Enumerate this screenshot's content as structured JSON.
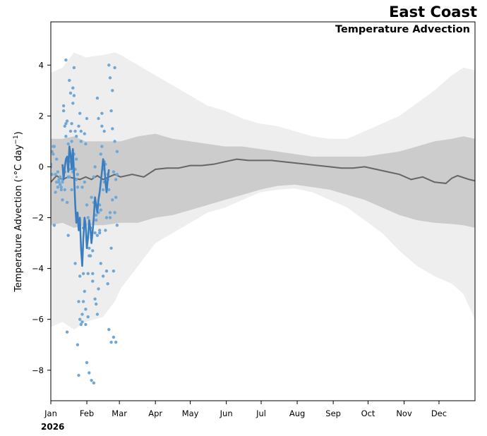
{
  "chart_data": {
    "type": "line",
    "title": "East Coast",
    "subtitle": "Temperature Advection",
    "ylabel_main": "Temperature Advection (",
    "ylabel_unit": "°C day",
    "ylabel_exp": "−1",
    "ylabel_close": ")",
    "year_label": "2026",
    "xlim": [
      0,
      365
    ],
    "ylim": [
      -9.2,
      5.7
    ],
    "yticks": [
      4,
      2,
      0,
      -2,
      -4,
      -6,
      -8
    ],
    "ytick_labels": [
      "4",
      "2",
      "0",
      "−2",
      "−4",
      "−6",
      "−8"
    ],
    "xticks": [
      {
        "day": 0,
        "label": "Jan"
      },
      {
        "day": 31,
        "label": "Feb"
      },
      {
        "day": 59,
        "label": "Mar"
      },
      {
        "day": 90,
        "label": "Apr"
      },
      {
        "day": 120,
        "label": "May"
      },
      {
        "day": 151,
        "label": "Jun"
      },
      {
        "day": 181,
        "label": "Jul"
      },
      {
        "day": 212,
        "label": "Aug"
      },
      {
        "day": 243,
        "label": "Sep"
      },
      {
        "day": 273,
        "label": "Oct"
      },
      {
        "day": 304,
        "label": "Nov"
      },
      {
        "day": 334,
        "label": "Dec"
      }
    ],
    "colors": {
      "outer_band": "#eeeeee",
      "inner_band": "#cccccc",
      "climatology": "#666666",
      "observed": "#3a7ebf",
      "scatter": "#6fa8d6"
    },
    "outer_band": {
      "x": [
        0,
        10,
        20,
        30,
        45,
        55,
        60,
        75,
        90,
        105,
        120,
        135,
        150,
        165,
        180,
        195,
        210,
        225,
        240,
        255,
        270,
        285,
        300,
        315,
        330,
        345,
        355,
        365
      ],
      "upper": [
        3.7,
        3.9,
        4.5,
        4.3,
        4.4,
        4.5,
        4.4,
        4.0,
        3.6,
        3.2,
        2.8,
        2.4,
        2.2,
        1.9,
        1.7,
        1.6,
        1.4,
        1.2,
        1.1,
        1.1,
        1.4,
        1.7,
        2.0,
        2.5,
        3.0,
        3.6,
        3.9,
        3.8
      ],
      "lower": [
        -6.3,
        -6.1,
        -6.4,
        -6.1,
        -5.9,
        -5.3,
        -4.8,
        -3.9,
        -3.0,
        -2.6,
        -2.2,
        -1.8,
        -1.6,
        -1.3,
        -1.0,
        -0.9,
        -0.85,
        -1.0,
        -1.3,
        -1.6,
        -2.1,
        -2.6,
        -3.3,
        -3.9,
        -4.3,
        -4.6,
        -5.0,
        -6.0
      ]
    },
    "inner_band": {
      "x": [
        0,
        10,
        20,
        30,
        45,
        60,
        75,
        90,
        105,
        120,
        135,
        150,
        165,
        180,
        195,
        210,
        225,
        240,
        255,
        270,
        285,
        300,
        315,
        330,
        345,
        355,
        365
      ],
      "upper": [
        1.1,
        1.1,
        1.2,
        1.0,
        1.0,
        1.0,
        1.2,
        1.3,
        1.1,
        1.0,
        0.9,
        0.8,
        0.8,
        0.7,
        0.6,
        0.5,
        0.4,
        0.4,
        0.4,
        0.4,
        0.5,
        0.6,
        0.8,
        1.0,
        1.1,
        1.2,
        1.1
      ],
      "lower": [
        -2.3,
        -2.2,
        -2.4,
        -2.3,
        -2.3,
        -2.2,
        -2.2,
        -2.0,
        -1.9,
        -1.7,
        -1.5,
        -1.3,
        -1.1,
        -0.9,
        -0.75,
        -0.7,
        -0.8,
        -0.9,
        -1.1,
        -1.3,
        -1.6,
        -1.9,
        -2.1,
        -2.2,
        -2.25,
        -2.3,
        -2.4
      ]
    },
    "series": [
      {
        "x": [
          0,
          5,
          10,
          15,
          20,
          25,
          30,
          35,
          40,
          45,
          50,
          55,
          60,
          70,
          80,
          90,
          100,
          110,
          120,
          130,
          140,
          150,
          160,
          170,
          180,
          190,
          200,
          210,
          220,
          230,
          240,
          250,
          260,
          270,
          280,
          290,
          300,
          310,
          320,
          330,
          340,
          345,
          350,
          360,
          365
        ],
        "y": [
          -0.6,
          -0.35,
          -0.5,
          -0.4,
          -0.45,
          -0.5,
          -0.4,
          -0.5,
          -0.35,
          -0.5,
          -0.4,
          -0.3,
          -0.4,
          -0.3,
          -0.4,
          -0.1,
          -0.05,
          -0.05,
          0.05,
          0.05,
          0.1,
          0.2,
          0.3,
          0.25,
          0.25,
          0.25,
          0.2,
          0.15,
          0.1,
          0.05,
          0.0,
          -0.05,
          -0.05,
          0.0,
          -0.1,
          -0.2,
          -0.3,
          -0.5,
          -0.4,
          -0.6,
          -0.65,
          -0.45,
          -0.35,
          -0.5,
          -0.55
        ]
      },
      {
        "x": [
          10,
          11,
          12,
          13,
          14,
          15,
          16,
          17,
          18,
          19,
          20,
          21,
          22,
          23,
          24,
          25,
          26,
          27,
          28,
          29,
          30,
          31,
          32,
          33,
          34,
          35,
          36,
          37,
          38,
          39,
          40,
          41,
          42,
          43,
          44,
          45,
          46,
          47,
          48,
          49,
          50,
          51,
          52,
          53,
          54,
          55
        ],
        "y": [
          0.1,
          -0.5,
          0.0,
          0.3,
          0.4,
          -0.2,
          0.8,
          0.5,
          -0.1,
          0.7,
          -0.3,
          -1.5,
          -2.2,
          -1.8,
          -2.5,
          -2.0,
          -3.2,
          -3.9,
          -2.8,
          -2.0,
          -2.3,
          -3.2,
          -2.8,
          -2.1,
          -2.4,
          -3.0,
          -2.5,
          -2.0,
          -1.2,
          -1.5,
          -1.8,
          -1.3,
          -1.0,
          -0.6,
          -0.2,
          0.3,
          0.1,
          -0.6,
          -1.0,
          -0.5,
          -0.1,
          null,
          null,
          null,
          null,
          null
        ]
      }
    ],
    "scatter": {
      "x": [
        0,
        1,
        2,
        3,
        4,
        5,
        6,
        7,
        8,
        9,
        10,
        11,
        12,
        13,
        14,
        15,
        16,
        17,
        18,
        19,
        20,
        21,
        22,
        23,
        24,
        25,
        26,
        27,
        28,
        29,
        30,
        31,
        32,
        33,
        34,
        35,
        36,
        37,
        38,
        39,
        40,
        41,
        42,
        43,
        44,
        45,
        46,
        47,
        48,
        49,
        50,
        51,
        52,
        53,
        54,
        55,
        56,
        57,
        0,
        2,
        4,
        6,
        8,
        10,
        12,
        14,
        16,
        18,
        20,
        22,
        24,
        26,
        28,
        30,
        32,
        34,
        36,
        38,
        40,
        42,
        44,
        46,
        48,
        50,
        52,
        54,
        56,
        1,
        3,
        5,
        7,
        9,
        11,
        13,
        15,
        17,
        19,
        21,
        23,
        25,
        27,
        29,
        31,
        33,
        35,
        37,
        39,
        41,
        43,
        45,
        47,
        49,
        51,
        53,
        55,
        57,
        10,
        13,
        16,
        19,
        22,
        25,
        28,
        31,
        34,
        37,
        40,
        43,
        46,
        49,
        52,
        55,
        14,
        17,
        20,
        23,
        26,
        29,
        32,
        35,
        38,
        41,
        44,
        47,
        50,
        53,
        56,
        12,
        18,
        24,
        30,
        36,
        42,
        48,
        54,
        15,
        21,
        27,
        33,
        39,
        45,
        51,
        57
      ],
      "y": [
        0.1,
        0.6,
        0.8,
        -2.3,
        -0.3,
        -0.6,
        -0.8,
        -0.5,
        -0.7,
        -0.8,
        -1.3,
        2.4,
        -0.9,
        4.2,
        1.8,
        0.9,
        -0.4,
        0.2,
        1.7,
        -0.2,
        3.9,
        1.4,
        1.2,
        -0.3,
        1.6,
        2.1,
        1.4,
        -0.8,
        -2.4,
        1.3,
        0.9,
        -1.5,
        -2.0,
        -3.2,
        -2.4,
        -2.8,
        -3.3,
        -0.4,
        0.0,
        -1.9,
        2.7,
        1.9,
        -1.5,
        0.5,
        0.8,
        -0.9,
        1.4,
        -0.6,
        -2.0,
        -4.6,
        4.0,
        3.5,
        2.2,
        1.5,
        -0.2,
        1.0,
        -0.5,
        -0.3,
        0.0,
        0.5,
        -1.0,
        -0.2,
        -0.4,
        -0.6,
        1.6,
        -6.5,
        3.4,
        1.0,
        2.8,
        -0.5,
        -5.3,
        1.0,
        -4.2,
        -6.2,
        -5.9,
        -3.5,
        -4.2,
        -5.2,
        -5.8,
        -2.6,
        1.6,
        -0.6,
        -4.1,
        -6.4,
        -6.9,
        -6.7,
        -6.9,
        -0.3,
        0.8,
        0.3,
        -0.6,
        -0.9,
        2.2,
        1.2,
        -2.7,
        2.9,
        3.1,
        -0.1,
        -7.0,
        -6.0,
        -5.8,
        -4.9,
        -7.7,
        -8.1,
        -8.4,
        -8.5,
        -5.4,
        -4.8,
        -3.8,
        -4.3,
        -2.5,
        -0.3,
        -1.8,
        3.0,
        3.9,
        -2.3,
        -0.5,
        1.7,
        -0.1,
        2.5,
        0.3,
        -4.3,
        -5.3,
        1.9,
        -3.5,
        -1.4,
        -2.7,
        -1.7,
        0.2,
        -0.5,
        -3.2,
        -1.8,
        -1.4,
        1.4,
        0.5,
        -0.8,
        -6.2,
        -0.6,
        -4.2,
        -1.2,
        -2.6,
        -1.8,
        2.1,
        0.1,
        -0.9,
        -1.3,
        -1.2,
        -0.2,
        -0.9,
        -8.2,
        -5.6,
        -4.5,
        -2.5,
        -0.7,
        -4.1,
        -0.4,
        -3.8,
        -6.1,
        -3.5,
        -2.1,
        -0.1,
        -2.0,
        0.6
      ]
    }
  }
}
